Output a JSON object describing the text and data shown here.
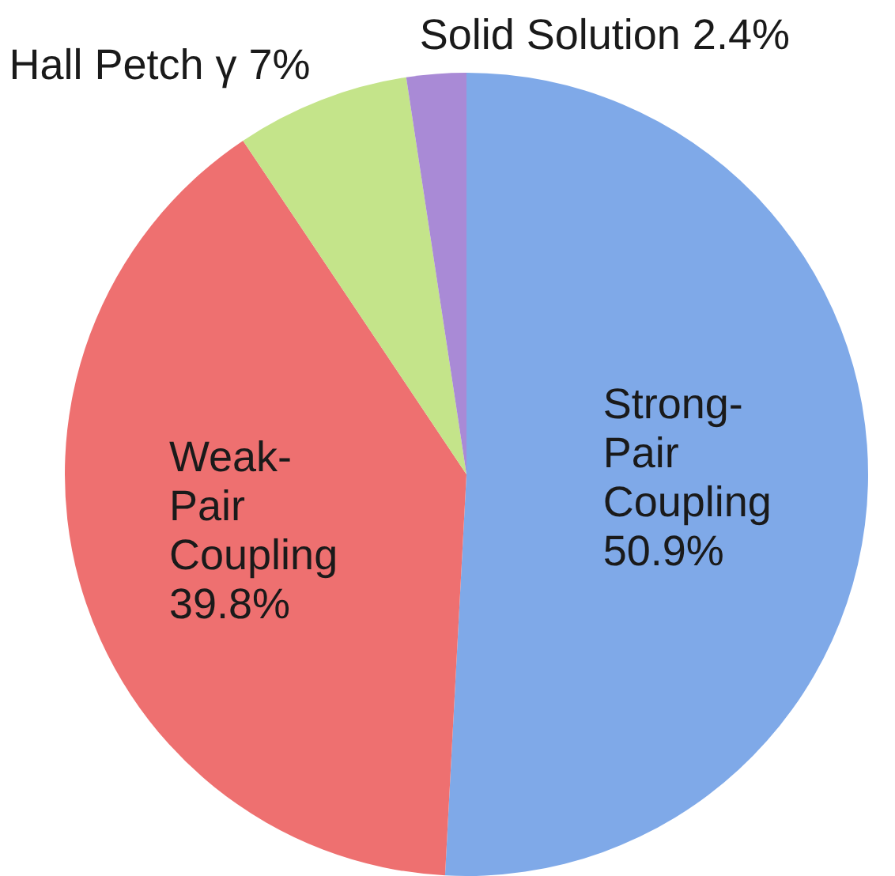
{
  "chart_data": {
    "type": "pie",
    "categories": [
      "Strong-Pair Coupling",
      "Weak-Pair Coupling",
      "Hall Petch γ",
      "Solid Solution"
    ],
    "values": [
      50.9,
      39.8,
      7,
      2.4
    ],
    "value_labels": [
      "50.9%",
      "39.8%",
      "7%",
      "2.4%"
    ],
    "colors": [
      "#7fa9e8",
      "#ee7070",
      "#c4e48a",
      "#a98ad6"
    ],
    "legend": false
  }
}
